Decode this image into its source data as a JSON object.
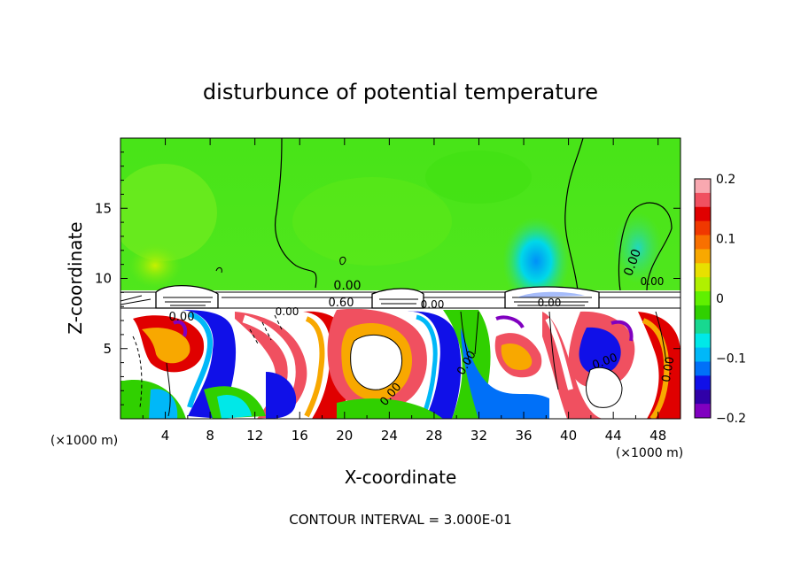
{
  "chart_data": {
    "type": "heatmap",
    "title": "disturbunce of potential temperature",
    "xlabel": "X-coordinate",
    "ylabel": "Z-coordinate",
    "x_unit_left": "(×1000 m)",
    "x_unit_right": "(×1000 m)",
    "xlim": [
      0,
      50
    ],
    "ylim": [
      0,
      20
    ],
    "x_ticks": [
      "4",
      "8",
      "12",
      "16",
      "20",
      "24",
      "28",
      "32",
      "36",
      "40",
      "44",
      "48"
    ],
    "y_ticks": [
      "5",
      "10",
      "15"
    ],
    "colorbar": {
      "range": [
        -0.2,
        0.2
      ],
      "tick_labels": [
        "0.2",
        "0.1",
        "0",
        "−0.1",
        "−0.2"
      ],
      "colors": [
        "#f8a8b0",
        "#f05060",
        "#e00000",
        "#f03800",
        "#f87000",
        "#f8a800",
        "#e8e000",
        "#b0f000",
        "#60f000",
        "#30d000",
        "#18d890",
        "#00e8e8",
        "#00b8f8",
        "#0070f8",
        "#1010e8",
        "#3000a8",
        "#8000c0"
      ]
    },
    "contour_labels": [
      "0.00",
      "0.00",
      "0.00",
      "0.60",
      "0.00",
      "0.00",
      "0.00",
      "0.00",
      "0.00",
      "0.00",
      "0.00",
      "0.00"
    ],
    "footer": "CONTOUR INTERVAL = 3.000E-01"
  }
}
